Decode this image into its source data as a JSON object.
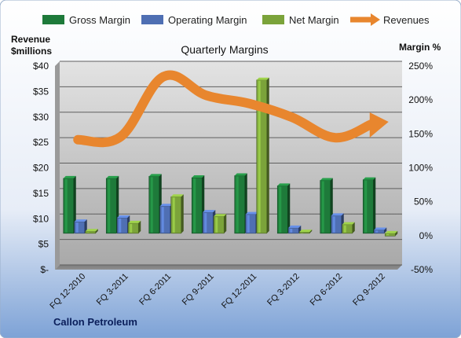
{
  "chart_data": {
    "type": "bar",
    "title": "Quarterly Margins",
    "source": "Callon Petroleum",
    "left_axis": {
      "label_line1": "Revenue",
      "label_line2": "$millions",
      "range": [
        0,
        40
      ],
      "ticks": [
        0,
        5,
        10,
        15,
        20,
        25,
        30,
        35,
        40
      ],
      "tick_labels": [
        "$-",
        "$5",
        "$10",
        "$15",
        "$20",
        "$25",
        "$30",
        "$35",
        "$40"
      ]
    },
    "right_axis": {
      "label": "Margin %",
      "range": [
        -50,
        250
      ],
      "ticks": [
        -50,
        0,
        50,
        100,
        150,
        200,
        250
      ],
      "tick_labels": [
        "-50%",
        "0%",
        "50%",
        "100%",
        "150%",
        "200%",
        "250%"
      ]
    },
    "categories": [
      "FQ 12-2010",
      "FQ 3-2011",
      "FQ 6-2011",
      "FQ 9-2011",
      "FQ 12-2011",
      "FQ 3-2012",
      "FQ 6-2012",
      "FQ 9-2012"
    ],
    "series": [
      {
        "name": "Gross Margin",
        "axis": "right",
        "kind": "bar",
        "color": "#1E7A3A",
        "values": [
          81,
          81,
          84,
          82,
          85,
          70,
          78,
          79
        ]
      },
      {
        "name": "Operating Margin",
        "axis": "right",
        "kind": "bar",
        "color": "#4F6FB3",
        "values": [
          17,
          23,
          40,
          31,
          28,
          8,
          26,
          5
        ]
      },
      {
        "name": "Net Margin",
        "axis": "right",
        "kind": "bar",
        "color": "#7BA33A",
        "values": [
          3,
          15,
          54,
          25,
          226,
          2,
          13,
          -4
        ]
      },
      {
        "name": "Revenues",
        "axis": "left",
        "kind": "line",
        "color": "#E8862E",
        "values": [
          24.6,
          25.2,
          37.0,
          33.3,
          31.7,
          29.0,
          25.0,
          27.8
        ]
      }
    ],
    "grid": true,
    "legend_position": "top"
  }
}
